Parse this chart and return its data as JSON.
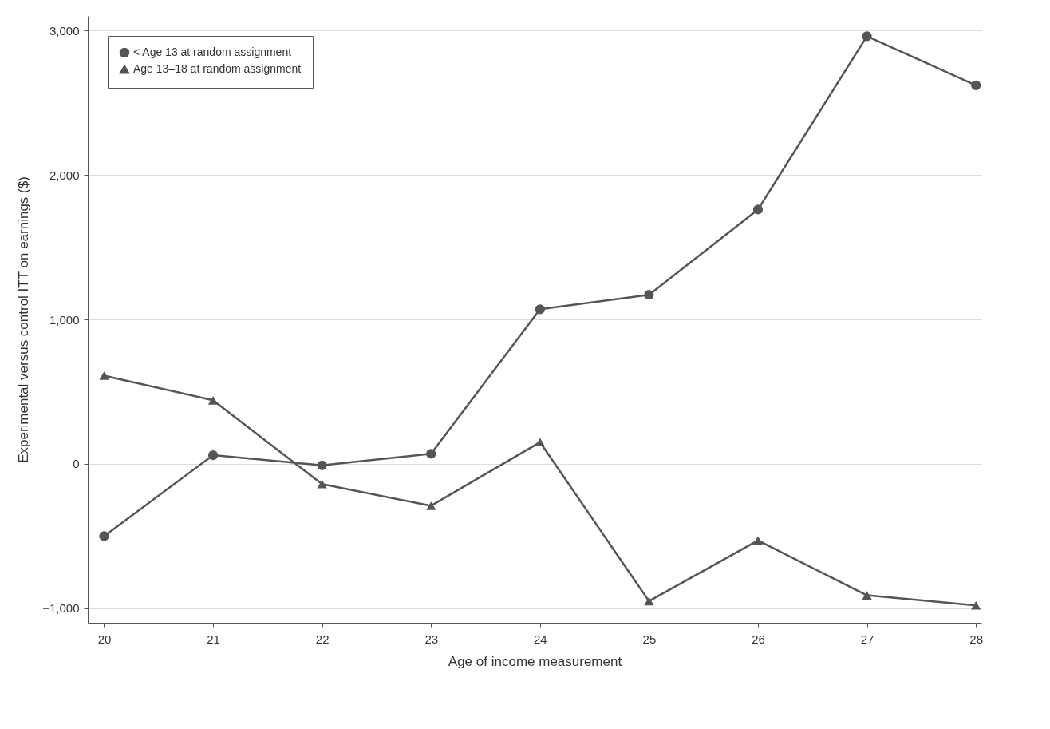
{
  "chart_data": {
    "type": "line",
    "xlabel": "Age of income measurement",
    "ylabel": "Experimental versus control ITT on earnings ($)",
    "x": [
      20,
      21,
      22,
      23,
      24,
      25,
      26,
      27,
      28
    ],
    "series": [
      {
        "name": "< Age 13 at random assignment",
        "color": "#555555",
        "marker": "circle",
        "values": [
          -500,
          60,
          -10,
          70,
          1070,
          1170,
          1760,
          2960,
          2620
        ]
      },
      {
        "name": "Age 13–18 at random assignment",
        "color": "#555555",
        "marker": "triangle",
        "values": [
          610,
          440,
          -140,
          -290,
          150,
          -950,
          -530,
          -910,
          -980
        ]
      }
    ],
    "xlim": [
      19.85,
      28.05
    ],
    "xticks": [
      20,
      21,
      22,
      23,
      24,
      25,
      26,
      27,
      28
    ],
    "ylim": [
      -1100,
      3100
    ],
    "yticks": [
      {
        "value": -1000,
        "label": "−1,000"
      },
      0,
      {
        "value": 1000,
        "label": "1,000"
      },
      {
        "value": 2000,
        "label": "2,000"
      },
      {
        "value": 3000,
        "label": "3,000"
      }
    ],
    "grid": "y",
    "legend": "top left",
    "line_style": "solid"
  }
}
